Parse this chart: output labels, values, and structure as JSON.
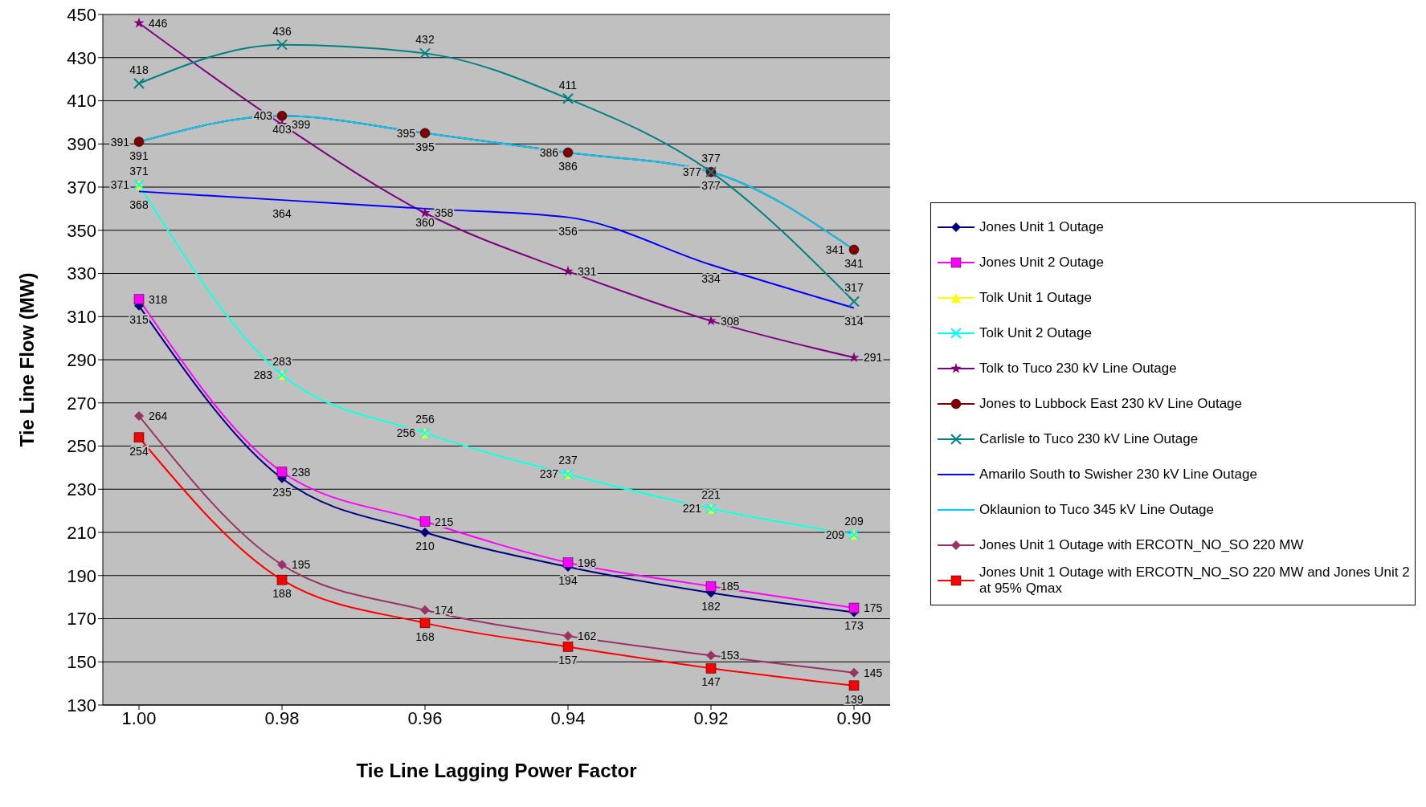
{
  "chart_data": {
    "type": "line",
    "xlabel": "Tie Line Lagging Power Factor",
    "ylabel": "Tie Line Flow (MW)",
    "categories": [
      "1.00",
      "0.98",
      "0.96",
      "0.94",
      "0.92",
      "0.90"
    ],
    "ylim": [
      130,
      450
    ],
    "yticks": [
      130,
      150,
      170,
      190,
      210,
      230,
      250,
      270,
      290,
      310,
      330,
      350,
      370,
      390,
      410,
      430,
      450
    ],
    "grid": "y",
    "legend": "right",
    "data_labels": true,
    "series": [
      {
        "name": "Jones Unit 1 Outage",
        "color": "#000080",
        "marker": "diamond",
        "values": [
          315,
          235,
          210,
          194,
          182,
          173
        ]
      },
      {
        "name": "Jones Unit 2 Outage",
        "color": "#ff00ff",
        "marker": "square",
        "values": [
          318,
          238,
          215,
          196,
          185,
          175
        ]
      },
      {
        "name": "Tolk Unit 1 Outage",
        "color": "#ffff00",
        "marker": "triangle",
        "values": [
          371,
          283,
          256,
          237,
          221,
          209
        ]
      },
      {
        "name": "Tolk Unit 2 Outage",
        "color": "#00ffff",
        "marker": "cross",
        "values": [
          371,
          283,
          256,
          237,
          221,
          209
        ]
      },
      {
        "name": "Tolk to Tuco 230 kV Line Outage",
        "color": "#800080",
        "marker": "star",
        "values": [
          446,
          399,
          358,
          331,
          308,
          291
        ]
      },
      {
        "name": "Jones to Lubbock East 230 kV Line Outage",
        "color": "#800000",
        "marker": "circle",
        "values": [
          391,
          403,
          395,
          386,
          377,
          341
        ]
      },
      {
        "name": "Carlisle to Tuco 230 kV Line Outage",
        "color": "#008080",
        "marker": "cross",
        "values": [
          418,
          436,
          432,
          411,
          377,
          317
        ]
      },
      {
        "name": "Amarilo South to Swisher 230 kV Line Outage",
        "color": "#0000ff",
        "marker": "none",
        "values": [
          368,
          364,
          360,
          356,
          334,
          314
        ]
      },
      {
        "name": "Oklaunion to Tuco 345 kV Line Outage",
        "color": "#00ccff",
        "marker": "none",
        "values": [
          391,
          403,
          395,
          386,
          377,
          341
        ]
      },
      {
        "name": "Jones Unit 1 Outage with ERCOTN_NO_SO 220 MW",
        "color": "#993366",
        "marker": "diamond",
        "values": [
          264,
          195,
          174,
          162,
          153,
          145
        ]
      },
      {
        "name": "Jones Unit 1 Outage with ERCOTN_NO_SO 220 MW and Jones Unit 2 at 95% Qmax",
        "color": "#ff0000",
        "marker": "square",
        "values": [
          254,
          188,
          168,
          157,
          147,
          139
        ]
      }
    ]
  }
}
